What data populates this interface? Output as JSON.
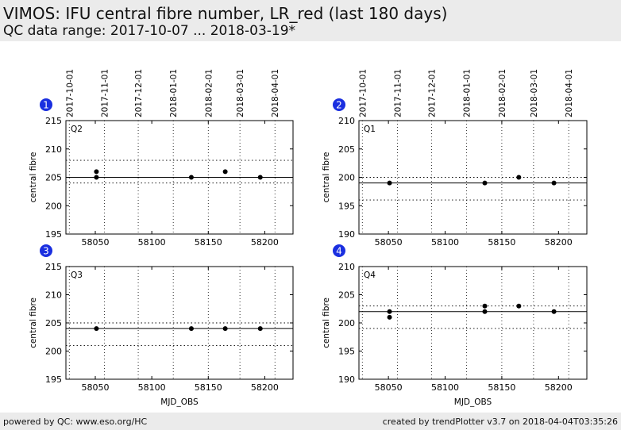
{
  "header": {
    "title": "VIMOS: IFU central fibre number, LR_red (last 180 days)",
    "subtitle": "QC data range: 2017-10-07 ... 2018-03-19*"
  },
  "footer": {
    "left": "powered by QC: www.eso.org/HC",
    "right": "created by trendPlotter v3.7 on 2018-04-04T03:35:26"
  },
  "chart_data": [
    {
      "type": "scatter",
      "badge": "1",
      "label": "Q2",
      "xlabel": "",
      "ylabel": "central fibre",
      "xlim": [
        58024,
        58225
      ],
      "ylim": [
        195,
        215
      ],
      "yticks": [
        195,
        200,
        205,
        210,
        215
      ],
      "xticks": [
        58050,
        58100,
        58150,
        58200
      ],
      "top_dates": [
        "2017-10-01",
        "2017-11-01",
        "2017-12-01",
        "2018-01-01",
        "2018-02-01",
        "2018-03-01",
        "2018-04-01"
      ],
      "top_date_mjd": [
        58027,
        58058,
        58088,
        58119,
        58150,
        58178,
        58209
      ],
      "mean": 205,
      "band": [
        204,
        208
      ],
      "points": [
        [
          58051,
          206
        ],
        [
          58051,
          205
        ],
        [
          58135,
          205
        ],
        [
          58165,
          206
        ],
        [
          58196,
          205
        ]
      ],
      "grid": true
    },
    {
      "type": "scatter",
      "badge": "2",
      "label": "Q1",
      "xlabel": "",
      "ylabel": "central fibre",
      "xlim": [
        58024,
        58225
      ],
      "ylim": [
        190,
        210
      ],
      "yticks": [
        190,
        195,
        200,
        205,
        210
      ],
      "xticks": [
        58050,
        58100,
        58150,
        58200
      ],
      "top_dates": [
        "2017-10-01",
        "2017-11-01",
        "2017-12-01",
        "2018-01-01",
        "2018-02-01",
        "2018-03-01",
        "2018-04-01"
      ],
      "top_date_mjd": [
        58027,
        58058,
        58088,
        58119,
        58150,
        58178,
        58209
      ],
      "mean": 199,
      "band": [
        196,
        200
      ],
      "points": [
        [
          58051,
          199
        ],
        [
          58135,
          199
        ],
        [
          58165,
          200
        ],
        [
          58196,
          199
        ]
      ],
      "grid": true
    },
    {
      "type": "scatter",
      "badge": "3",
      "label": "Q3",
      "xlabel": "MJD_OBS",
      "ylabel": "central fibre",
      "xlim": [
        58024,
        58225
      ],
      "ylim": [
        195,
        215
      ],
      "yticks": [
        195,
        200,
        205,
        210,
        215
      ],
      "xticks": [
        58050,
        58100,
        58150,
        58200
      ],
      "top_dates": [],
      "top_date_mjd": [
        58027,
        58058,
        58088,
        58119,
        58150,
        58178,
        58209
      ],
      "mean": 204,
      "band": [
        201,
        205
      ],
      "points": [
        [
          58051,
          204
        ],
        [
          58135,
          204
        ],
        [
          58165,
          204
        ],
        [
          58196,
          204
        ]
      ],
      "grid": true
    },
    {
      "type": "scatter",
      "badge": "4",
      "label": "Q4",
      "xlabel": "MJD_OBS",
      "ylabel": "central fibre",
      "xlim": [
        58024,
        58225
      ],
      "ylim": [
        190,
        210
      ],
      "yticks": [
        190,
        195,
        200,
        205,
        210
      ],
      "xticks": [
        58050,
        58100,
        58150,
        58200
      ],
      "top_dates": [],
      "top_date_mjd": [
        58027,
        58058,
        58088,
        58119,
        58150,
        58178,
        58209
      ],
      "mean": 202,
      "band": [
        199,
        203
      ],
      "points": [
        [
          58051,
          202
        ],
        [
          58051,
          201
        ],
        [
          58135,
          203
        ],
        [
          58135,
          202
        ],
        [
          58165,
          203
        ],
        [
          58196,
          202
        ]
      ],
      "grid": true
    }
  ]
}
